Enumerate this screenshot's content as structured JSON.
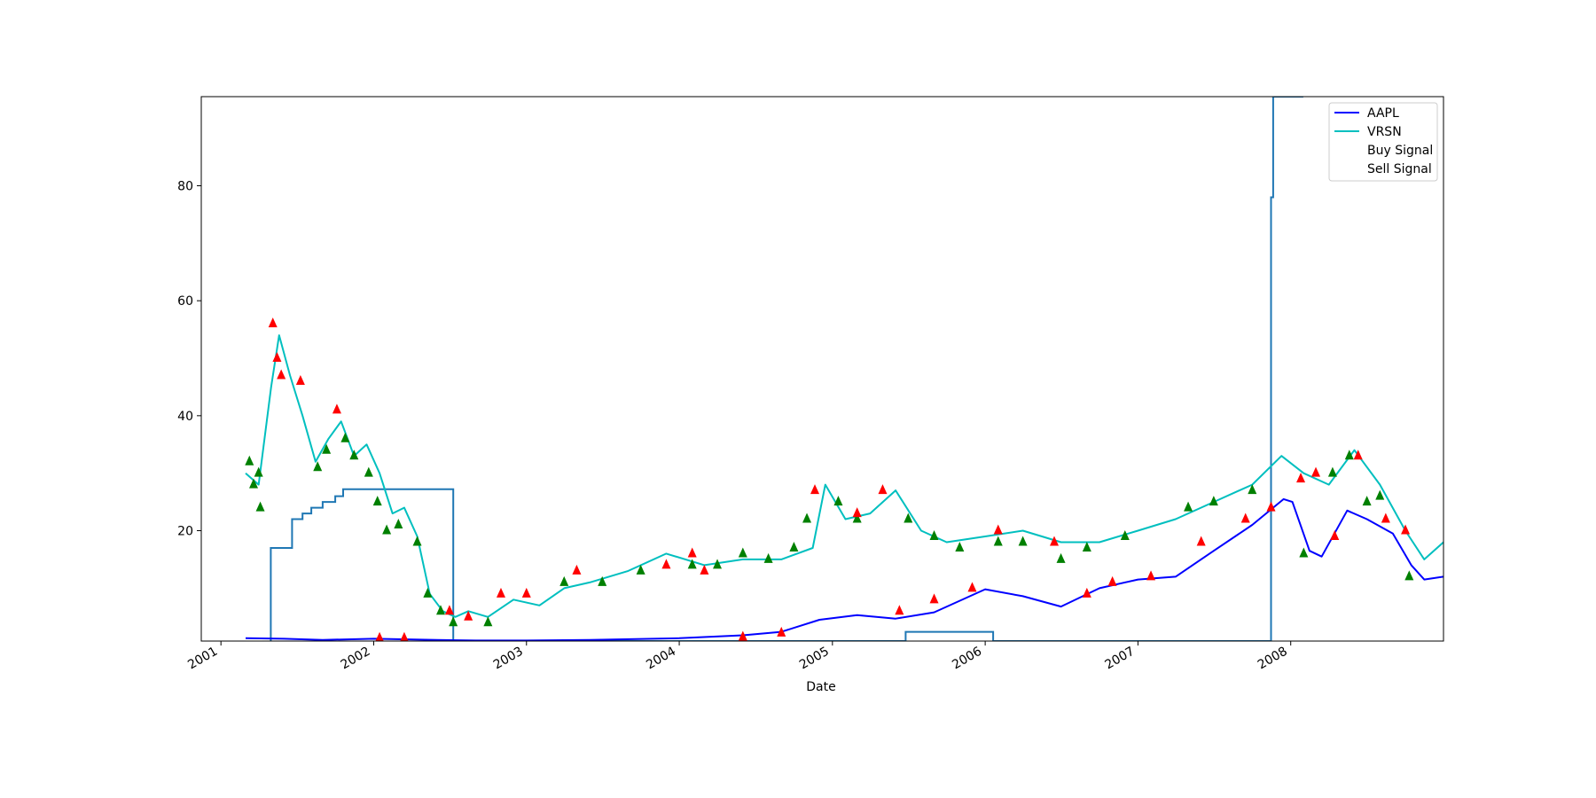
{
  "chart_data": {
    "type": "line",
    "title": "",
    "xlabel": "Date",
    "ylabel": "",
    "xlim": [
      "2000-11-15",
      "2008-12-31"
    ],
    "ylim": [
      0.8,
      95.5
    ],
    "grid": false,
    "legend_position": "top-right",
    "x_ticks": [
      "2001",
      "2002",
      "2003",
      "2004",
      "2005",
      "2006",
      "2007",
      "2008"
    ],
    "y_ticks": [
      20,
      40,
      60,
      80
    ],
    "colors": {
      "aapl": "#0000ff",
      "vrsn": "#00bfbf",
      "step": "#1f77b4",
      "buy": "#008000",
      "sell": "#ff0000"
    },
    "series": [
      {
        "name": "AAPL",
        "dates": [
          "2001-03-01",
          "2001-06-01",
          "2001-09-01",
          "2002-01-01",
          "2002-06-01",
          "2002-09-01",
          "2003-01-01",
          "2003-06-01",
          "2004-01-01",
          "2004-06-01",
          "2004-09-01",
          "2004-12-01",
          "2005-03-01",
          "2005-06-01",
          "2005-09-01",
          "2006-01-01",
          "2006-04-01",
          "2006-07-01",
          "2006-10-01",
          "2007-01-01",
          "2007-04-01",
          "2007-07-01",
          "2007-10-01",
          "2007-12-15",
          "2008-01-05",
          "2008-02-15",
          "2008-03-15",
          "2008-05-15",
          "2008-07-01",
          "2008-09-01",
          "2008-10-15",
          "2008-11-15",
          "2008-12-31"
        ],
        "values": [
          1.3,
          1.2,
          1.0,
          1.2,
          1.0,
          0.9,
          0.9,
          1.0,
          1.3,
          1.8,
          2.4,
          4.5,
          5.3,
          4.7,
          5.8,
          9.8,
          8.6,
          6.8,
          10.0,
          11.5,
          12.0,
          16.5,
          21.0,
          25.5,
          25.0,
          16.5,
          15.5,
          23.5,
          22.0,
          19.5,
          14.0,
          11.5,
          12.0
        ]
      },
      {
        "name": "VRSN",
        "dates": [
          "2001-03-01",
          "2001-04-01",
          "2001-05-01",
          "2001-05-20",
          "2001-06-15",
          "2001-07-15",
          "2001-08-15",
          "2001-09-15",
          "2001-10-15",
          "2001-11-15",
          "2001-12-15",
          "2002-01-15",
          "2002-02-15",
          "2002-03-15",
          "2002-04-15",
          "2002-05-15",
          "2002-06-15",
          "2002-07-15",
          "2002-08-15",
          "2002-10-01",
          "2002-12-01",
          "2003-02-01",
          "2003-04-01",
          "2003-06-01",
          "2003-09-01",
          "2003-12-01",
          "2004-03-01",
          "2004-06-01",
          "2004-09-01",
          "2004-11-15",
          "2004-12-15",
          "2005-02-01",
          "2005-04-01",
          "2005-06-01",
          "2005-08-01",
          "2005-10-01",
          "2006-01-01",
          "2006-04-01",
          "2006-07-01",
          "2006-10-01",
          "2007-01-01",
          "2007-04-01",
          "2007-07-01",
          "2007-10-01",
          "2007-12-10",
          "2008-02-01",
          "2008-04-01",
          "2008-06-01",
          "2008-08-01",
          "2008-10-01",
          "2008-11-15",
          "2008-12-31"
        ],
        "values": [
          30,
          28,
          45,
          54,
          47,
          40,
          32,
          36,
          39,
          33,
          35,
          30,
          23,
          24,
          19,
          9,
          6,
          5,
          6,
          5,
          8,
          7,
          10,
          11,
          13,
          16,
          14,
          15,
          15,
          17,
          28,
          22,
          23,
          27,
          20,
          18,
          19,
          20,
          18,
          18,
          20,
          22,
          25,
          28,
          33,
          30,
          28,
          34,
          28,
          20,
          15,
          18
        ]
      }
    ],
    "step_line": {
      "dates": [
        "2001-04-30",
        "2001-04-30",
        "2001-06-20",
        "2001-06-20",
        "2001-07-15",
        "2001-07-15",
        "2001-08-05",
        "2001-08-05",
        "2001-09-01",
        "2001-09-01",
        "2001-10-01",
        "2001-10-01",
        "2001-10-20",
        "2001-10-20",
        "2002-07-10",
        "2002-07-10",
        "2005-06-25",
        "2005-06-25",
        "2006-01-20",
        "2006-01-20",
        "2007-11-15",
        "2007-11-15",
        "2007-11-20",
        "2007-11-20",
        "2007-12-25",
        "2007-12-25",
        "2008-01-31"
      ],
      "values": [
        0.8,
        17,
        17,
        22,
        22,
        23,
        23,
        24,
        24,
        25,
        25,
        26,
        26,
        27.2,
        27.2,
        0.8,
        0.8,
        2.4,
        2.4,
        0.8,
        0.8,
        78,
        78,
        95.5,
        95.5,
        95.5,
        95.5
      ]
    },
    "buy_signals": {
      "dates": [
        "2001-03-10",
        "2001-03-20",
        "2001-04-01",
        "2001-04-05",
        "2001-08-20",
        "2001-09-10",
        "2001-10-25",
        "2001-11-15",
        "2001-12-20",
        "2002-01-10",
        "2002-02-01",
        "2002-03-01",
        "2002-04-15",
        "2002-05-10",
        "2002-06-10",
        "2002-07-10",
        "2002-10-01",
        "2003-04-01",
        "2003-07-01",
        "2003-10-01",
        "2004-02-01",
        "2004-04-01",
        "2004-06-01",
        "2004-08-01",
        "2004-10-01",
        "2004-11-01",
        "2005-01-15",
        "2005-03-01",
        "2005-07-01",
        "2005-09-01",
        "2005-11-01",
        "2006-02-01",
        "2006-04-01",
        "2006-07-01",
        "2006-09-01",
        "2006-12-01",
        "2007-05-01",
        "2007-07-01",
        "2007-10-01",
        "2008-02-01",
        "2008-04-10",
        "2008-05-20",
        "2008-07-01",
        "2008-08-01",
        "2008-10-10"
      ],
      "values": [
        32,
        28,
        30,
        24,
        31,
        34,
        36,
        33,
        30,
        25,
        20,
        21,
        18,
        9,
        6,
        4,
        4,
        11,
        11,
        13,
        14,
        14,
        16,
        15,
        17,
        22,
        25,
        22,
        22,
        19,
        17,
        18,
        18,
        15,
        17,
        19,
        24,
        25,
        27,
        16,
        30,
        33,
        25,
        26,
        12
      ]
    },
    "sell_signals": {
      "dates": [
        "2001-05-05",
        "2001-05-15",
        "2001-05-25",
        "2001-07-10",
        "2001-10-05",
        "2002-01-15",
        "2002-03-15",
        "2002-07-01",
        "2002-08-15",
        "2002-11-01",
        "2003-01-01",
        "2003-05-01",
        "2003-12-01",
        "2004-02-01",
        "2004-03-01",
        "2004-06-01",
        "2004-09-01",
        "2004-11-20",
        "2005-03-01",
        "2005-05-01",
        "2005-06-10",
        "2005-09-01",
        "2005-12-01",
        "2006-02-01",
        "2006-06-15",
        "2006-09-01",
        "2006-11-01",
        "2007-02-01",
        "2007-06-01",
        "2007-09-15",
        "2007-11-15",
        "2008-01-25",
        "2008-03-01",
        "2008-04-15",
        "2008-06-10",
        "2008-08-15",
        "2008-10-01"
      ],
      "values": [
        56,
        50,
        47,
        46,
        41,
        1.3,
        1.3,
        6,
        5,
        9,
        9,
        13,
        14,
        16,
        13,
        1.5,
        2.2,
        27,
        23,
        27,
        6,
        8,
        10,
        20,
        18,
        9,
        11,
        12,
        18,
        22,
        24,
        29,
        30,
        19,
        33,
        22,
        20
      ]
    }
  }
}
